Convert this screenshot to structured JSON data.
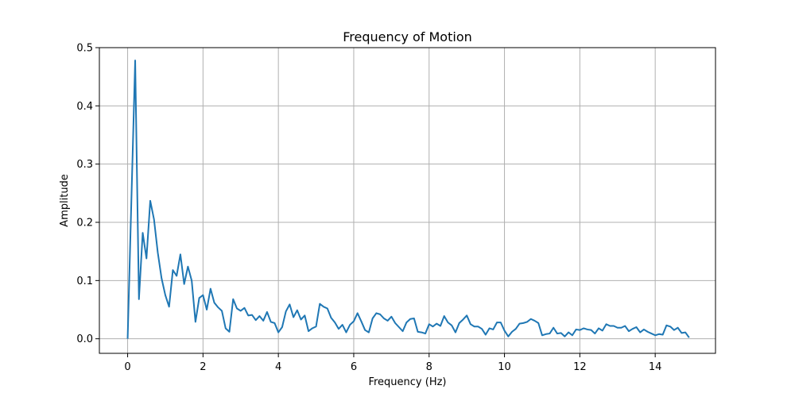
{
  "chart_data": {
    "type": "line",
    "title": "Frequency of Motion",
    "xlabel": "Frequency (Hz)",
    "ylabel": "Amplitude",
    "xlim": [
      -0.75,
      15.6
    ],
    "ylim": [
      -0.025,
      0.5
    ],
    "xticks": [
      0,
      2,
      4,
      6,
      8,
      10,
      12,
      14
    ],
    "yticks": [
      0.0,
      0.1,
      0.2,
      0.3,
      0.4,
      0.5
    ],
    "xtick_labels": [
      "0",
      "2",
      "4",
      "6",
      "8",
      "10",
      "12",
      "14"
    ],
    "ytick_labels": [
      "0.0",
      "0.1",
      "0.2",
      "0.3",
      "0.4",
      "0.5"
    ],
    "grid": true,
    "colors": {
      "line": "#1f77b4",
      "grid": "#b0b0b0",
      "axes": "#000000"
    },
    "series": [
      {
        "x": [
          0.0,
          0.2,
          0.3,
          0.4,
          0.5,
          0.6,
          0.7,
          0.8,
          0.9,
          1.0,
          1.1,
          1.2,
          1.3,
          1.4,
          1.5,
          1.6,
          1.7,
          1.8,
          1.9,
          2.0,
          2.1,
          2.2,
          2.3,
          2.4,
          2.5,
          2.6,
          2.7,
          2.8,
          2.9,
          3.0,
          3.1,
          3.2,
          3.3,
          3.4,
          3.5,
          3.6,
          3.7,
          3.8,
          3.9,
          4.0,
          4.1,
          4.2,
          4.3,
          4.4,
          4.5,
          4.6,
          4.7,
          4.8,
          4.9,
          5.0,
          5.1,
          5.2,
          5.3,
          5.4,
          5.5,
          5.6,
          5.7,
          5.8,
          5.9,
          6.0,
          6.1,
          6.2,
          6.3,
          6.4,
          6.5,
          6.6,
          6.7,
          6.8,
          6.9,
          7.0,
          7.1,
          7.2,
          7.3,
          7.4,
          7.5,
          7.6,
          7.7,
          7.8,
          7.9,
          8.0,
          8.1,
          8.2,
          8.3,
          8.4,
          8.5,
          8.6,
          8.7,
          8.8,
          8.9,
          9.0,
          9.1,
          9.2,
          9.3,
          9.4,
          9.5,
          9.6,
          9.7,
          9.8,
          9.9,
          10.0,
          10.1,
          10.2,
          10.3,
          10.4,
          10.5,
          10.6,
          10.7,
          10.8,
          10.9,
          11.0,
          11.1,
          11.2,
          11.3,
          11.4,
          11.5,
          11.6,
          11.7,
          11.8,
          11.9,
          12.0,
          12.1,
          12.2,
          12.3,
          12.4,
          12.5,
          12.6,
          12.7,
          12.8,
          12.9,
          13.0,
          13.1,
          13.2,
          13.3,
          13.4,
          13.5,
          13.6,
          13.7,
          13.8,
          13.9,
          14.0,
          14.1,
          14.2,
          14.3,
          14.4,
          14.5,
          14.6,
          14.7,
          14.8,
          14.9
        ],
        "y": [
          0.0,
          0.478,
          0.068,
          0.182,
          0.138,
          0.237,
          0.205,
          0.148,
          0.104,
          0.075,
          0.055,
          0.118,
          0.108,
          0.145,
          0.094,
          0.124,
          0.1,
          0.029,
          0.07,
          0.075,
          0.05,
          0.086,
          0.062,
          0.054,
          0.048,
          0.018,
          0.012,
          0.068,
          0.052,
          0.048,
          0.053,
          0.04,
          0.041,
          0.032,
          0.039,
          0.031,
          0.046,
          0.029,
          0.027,
          0.011,
          0.02,
          0.047,
          0.059,
          0.037,
          0.049,
          0.033,
          0.04,
          0.013,
          0.018,
          0.021,
          0.06,
          0.055,
          0.052,
          0.036,
          0.028,
          0.017,
          0.024,
          0.011,
          0.024,
          0.03,
          0.044,
          0.03,
          0.015,
          0.011,
          0.035,
          0.044,
          0.042,
          0.035,
          0.031,
          0.038,
          0.027,
          0.02,
          0.013,
          0.028,
          0.034,
          0.035,
          0.012,
          0.011,
          0.009,
          0.025,
          0.021,
          0.026,
          0.022,
          0.039,
          0.028,
          0.023,
          0.011,
          0.027,
          0.033,
          0.04,
          0.025,
          0.021,
          0.021,
          0.017,
          0.007,
          0.018,
          0.016,
          0.028,
          0.028,
          0.014,
          0.004,
          0.012,
          0.017,
          0.026,
          0.027,
          0.029,
          0.034,
          0.031,
          0.027,
          0.006,
          0.008,
          0.009,
          0.019,
          0.009,
          0.01,
          0.004,
          0.011,
          0.006,
          0.016,
          0.015,
          0.018,
          0.016,
          0.015,
          0.009,
          0.018,
          0.014,
          0.025,
          0.022,
          0.022,
          0.019,
          0.019,
          0.022,
          0.013,
          0.017,
          0.02,
          0.011,
          0.016,
          0.012,
          0.009,
          0.006,
          0.008,
          0.007,
          0.023,
          0.021,
          0.015,
          0.019,
          0.01,
          0.011,
          0.002
        ]
      }
    ]
  }
}
